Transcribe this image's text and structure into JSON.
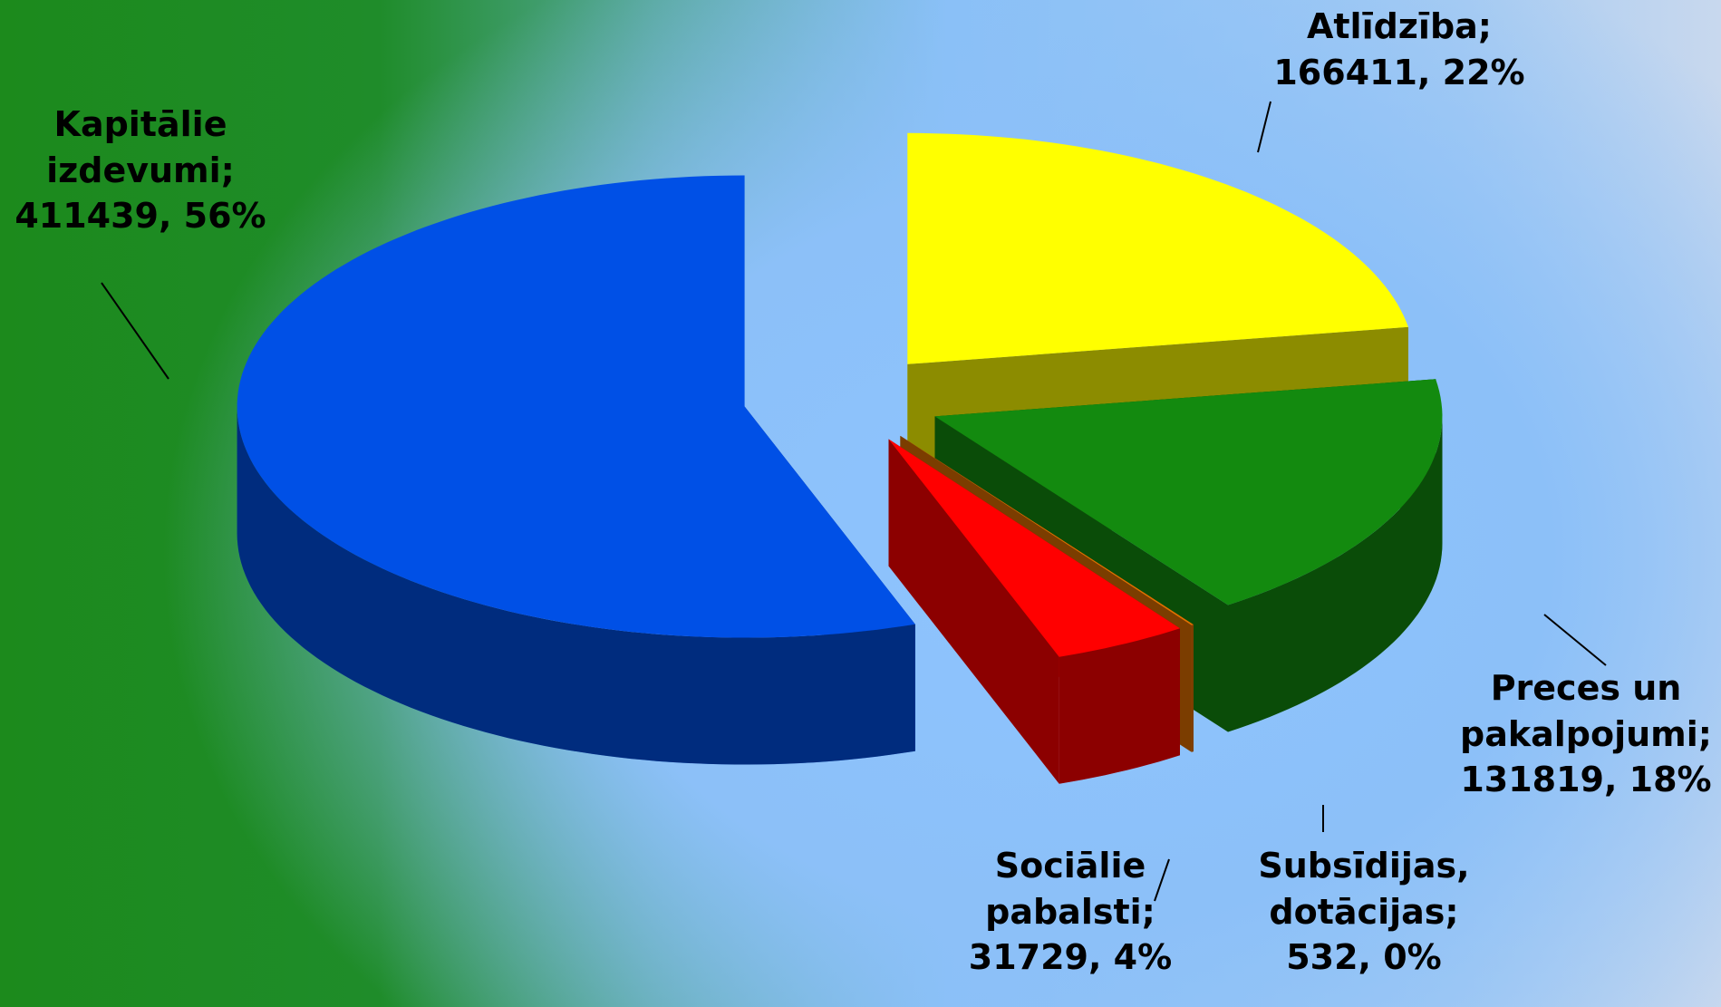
{
  "chart_data": {
    "type": "pie3d",
    "categories": [
      "Atlīdzība;",
      "Preces un pakalpojumi;",
      "Subsīdijas, dotācijas;",
      "Sociālie pabalsti;",
      "Kapitālie izdevumi;"
    ],
    "values": [
      166411,
      131819,
      532,
      31729,
      411439
    ],
    "value_labels": [
      "166411, 22%",
      "131819, 18%",
      "532, 0%",
      "31729, 4%",
      "411439, 56%"
    ],
    "colors": [
      "#ffff00",
      "#138a0f",
      "#e07000",
      "#ff0000",
      "#0050e6"
    ]
  }
}
